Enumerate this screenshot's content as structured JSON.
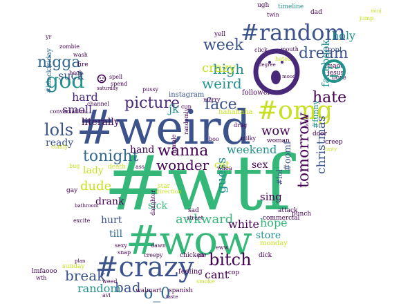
{
  "palette": {
    "purple": "#440154",
    "indigo": "#3b528b",
    "teal": "#21918c",
    "green": "#35b779",
    "lime": "#c8e020",
    "yellow": "#fde725",
    "slate": "#31688e",
    "violet": "#482878"
  },
  "words": [
    {
      "text": "#wtf",
      "fill": "#35b779"
    },
    {
      "text": "#weird",
      "fill": "#3b528b"
    },
    {
      "text": "#wow",
      "fill": "#35b779"
    },
    {
      "text": "#crazy",
      "fill": "#3b528b"
    },
    {
      "text": "#random",
      "fill": "#3b528b"
    },
    {
      "text": "#omg",
      "fill": "#c8e020"
    },
    {
      "text": "god",
      "fill": "#21918c"
    },
    {
      "text": "picture",
      "fill": "#482878"
    },
    {
      "text": "lols",
      "fill": "#3b528b"
    },
    {
      "text": "tonight",
      "fill": "#31688e"
    },
    {
      "text": "wanna",
      "fill": "#440154"
    },
    {
      "text": "nigga",
      "fill": "#31688e"
    },
    {
      "text": "dude",
      "fill": "#c8e020"
    },
    {
      "text": "bitch",
      "fill": "#440154"
    },
    {
      "text": "break",
      "fill": "#3b528b"
    },
    {
      "text": "wonder",
      "fill": "#440154"
    },
    {
      "text": "tomorrow",
      "fill": "#440154"
    },
    {
      "text": "weird",
      "fill": "#21918c"
    },
    {
      "text": "week",
      "fill": "#3b528b"
    },
    {
      "text": "high",
      "fill": "#21918c"
    },
    {
      "text": "dream",
      "fill": "#3b528b"
    },
    {
      "text": "face",
      "fill": "#3b528b"
    },
    {
      "text": "hate",
      "fill": "#440154"
    },
    {
      "text": "christmas",
      "fill": "#3b528b"
    },
    {
      "text": "crazy",
      "fill": "#c8e020"
    },
    {
      "text": "hard",
      "fill": "#482878"
    },
    {
      "text": "suck",
      "fill": "#3b528b"
    },
    {
      "text": "smell",
      "fill": "#482878"
    },
    {
      "text": "literally",
      "fill": "#440154"
    },
    {
      "text": "ready",
      "fill": "#3b528b"
    },
    {
      "text": "hand",
      "fill": "#440154"
    },
    {
      "text": "lady",
      "fill": "#c8e020"
    },
    {
      "text": "wow",
      "fill": "#440154"
    },
    {
      "text": "guess",
      "fill": "#21918c"
    },
    {
      "text": "weekend",
      "fill": "#21918c"
    },
    {
      "text": "awkward",
      "fill": "#35b779"
    },
    {
      "text": "hope",
      "fill": "#35b779"
    },
    {
      "text": "white",
      "fill": "#440154"
    },
    {
      "text": "sick",
      "fill": "#35b779"
    },
    {
      "text": "hurt",
      "fill": "#3b528b"
    },
    {
      "text": "bad",
      "fill": "#3b528b"
    },
    {
      "text": "o_0",
      "fill": "#31688e"
    },
    {
      "text": "random",
      "fill": "#21918c"
    },
    {
      "text": "cant",
      "fill": "#440154"
    },
    {
      "text": "store",
      "fill": "#21918c"
    },
    {
      "text": "drank",
      "fill": "#440154"
    },
    {
      "text": "till",
      "fill": "#31688e"
    },
    {
      "text": "holy",
      "fill": "#21918c"
    },
    {
      "text": "facebook",
      "fill": "#21918c"
    },
    {
      "text": "jk",
      "fill": "#21918c"
    },
    {
      "text": "cat",
      "fill": "#c8e020"
    },
    {
      "text": "sex",
      "fill": "#440154"
    },
    {
      "text": "sing",
      "fill": "#440154"
    },
    {
      "text": "instagram",
      "fill": "#3b528b"
    },
    {
      "text": "follower",
      "fill": "#440154"
    },
    {
      "text": "woman",
      "fill": "#440154"
    },
    {
      "text": "#funny",
      "fill": "#21918c"
    },
    {
      "text": "#oomf",
      "fill": "#3b528b"
    },
    {
      "text": "#lol",
      "fill": "#3b528b"
    },
    {
      "text": "#blackfriday",
      "fill": "#31688e"
    },
    {
      "text": "timeline",
      "fill": "#21918c"
    },
    {
      "text": "front",
      "fill": "#3b528b"
    },
    {
      "text": "lmaoo",
      "fill": "#440154"
    },
    {
      "text": "jesus",
      "fill": "#440154"
    },
    {
      "text": "bore",
      "fill": "#440154"
    },
    {
      "text": "marry",
      "fill": "#440154"
    },
    {
      "text": "dad",
      "fill": "#440154"
    },
    {
      "text": "twin",
      "fill": "#440154"
    },
    {
      "text": "ugh",
      "fill": "#440154"
    },
    {
      "text": "mouth",
      "fill": "#440154"
    },
    {
      "text": "degree",
      "fill": "#440154"
    },
    {
      "text": "mood",
      "fill": "#440154"
    },
    {
      "text": "ticket",
      "fill": "#440154"
    },
    {
      "text": "door",
      "fill": "#440154"
    },
    {
      "text": "creep",
      "fill": "#440154"
    },
    {
      "text": "tasty",
      "fill": "#c8e020"
    },
    {
      "text": "spell",
      "fill": "#440154"
    },
    {
      "text": "spend",
      "fill": "#440154"
    },
    {
      "text": "saturday",
      "fill": "#440154"
    },
    {
      "text": "boob",
      "fill": "#440154"
    },
    {
      "text": "wash",
      "fill": "#440154"
    },
    {
      "text": "fire",
      "fill": "#440154"
    },
    {
      "text": "yr",
      "fill": "#440154"
    },
    {
      "text": "zombie",
      "fill": "#440154"
    },
    {
      "text": "channel",
      "fill": "#440154"
    },
    {
      "text": "conversation",
      "fill": "#440154"
    },
    {
      "text": "pussy",
      "fill": "#440154"
    },
    {
      "text": "cup",
      "fill": "#440154"
    },
    {
      "text": "hahahaha",
      "fill": "#c8e020"
    },
    {
      "text": "drug",
      "fill": "#440154"
    },
    {
      "text": "milky",
      "fill": "#440154"
    },
    {
      "text": "randomly",
      "fill": "#440154"
    },
    {
      "text": "boo",
      "fill": "#440154"
    },
    {
      "text": "female",
      "fill": "#440154"
    },
    {
      "text": "whoa",
      "fill": "#440154"
    },
    {
      "text": "death",
      "fill": "#c8e020"
    },
    {
      "text": "ass",
      "fill": "#440154"
    },
    {
      "text": "gay",
      "fill": "#440154"
    },
    {
      "text": "bathroom",
      "fill": "#440154"
    },
    {
      "text": "excite",
      "fill": "#440154"
    },
    {
      "text": "daughter",
      "fill": "#440154"
    },
    {
      "text": "star",
      "fill": "#c8e020"
    },
    {
      "text": "direction",
      "fill": "#c8e020"
    },
    {
      "text": "street",
      "fill": "#440154"
    },
    {
      "text": "sad",
      "fill": "#440154"
    },
    {
      "text": "commercial",
      "fill": "#440154"
    },
    {
      "text": "attack",
      "fill": "#440154"
    },
    {
      "text": "punch",
      "fill": "#440154"
    },
    {
      "text": "monday",
      "fill": "#c8e020"
    },
    {
      "text": "dick",
      "fill": "#440154"
    },
    {
      "text": "eww",
      "fill": "#440154"
    },
    {
      "text": "sexy",
      "fill": "#440154"
    },
    {
      "text": "snap",
      "fill": "#440154"
    },
    {
      "text": "dawn",
      "fill": "#440154"
    },
    {
      "text": "creepy",
      "fill": "#440154"
    },
    {
      "text": "chicken",
      "fill": "#440154"
    },
    {
      "text": "pie",
      "fill": "#440154"
    },
    {
      "text": "feeling",
      "fill": "#440154"
    },
    {
      "text": "cop",
      "fill": "#440154"
    },
    {
      "text": "smoke",
      "fill": "#c8e020"
    },
    {
      "text": "spanish",
      "fill": "#440154"
    },
    {
      "text": "walmart",
      "fill": "#440154"
    },
    {
      "text": "taste",
      "fill": "#440154"
    },
    {
      "text": "weed",
      "fill": "#440154"
    },
    {
      "text": "avi",
      "fill": "#440154"
    },
    {
      "text": "sunday",
      "fill": "#c8e020"
    },
    {
      "text": "plan",
      "fill": "#440154"
    },
    {
      "text": "lmfaooo",
      "fill": "#440154"
    },
    {
      "text": "wth",
      "fill": "#440154"
    },
    {
      "text": "bug",
      "fill": "#c8e020"
    },
    {
      "text": "yell",
      "fill": "#440154"
    },
    {
      "text": "click",
      "fill": "#440154"
    },
    {
      "text": "hated",
      "fill": "#c8e020"
    },
    {
      "text": "jump",
      "fill": "#c8e020"
    },
    {
      "text": "comfy",
      "fill": "#c8e020"
    },
    {
      "text": "mini",
      "fill": "#c8e020"
    }
  ]
}
